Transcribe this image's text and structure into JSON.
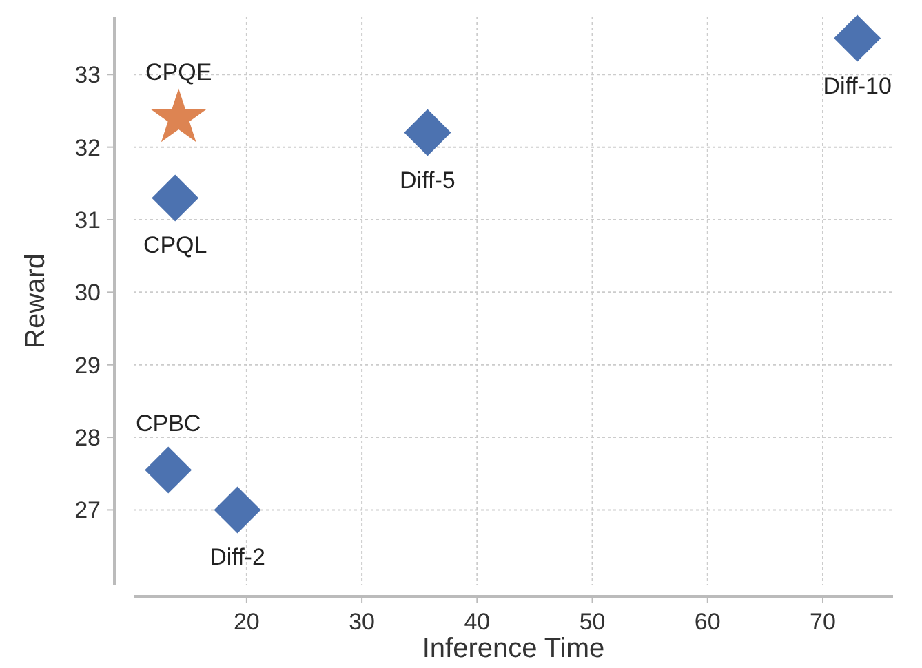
{
  "chart_data": {
    "type": "scatter",
    "xlabel": "Inference Time",
    "ylabel": "Reward",
    "xlim": [
      10.2,
      76.1
    ],
    "ylim": [
      25.96,
      33.8
    ],
    "xticks": [
      20,
      30,
      40,
      50,
      60,
      70
    ],
    "yticks": [
      27,
      28,
      29,
      30,
      31,
      32,
      33
    ],
    "grid": true,
    "series": [
      {
        "color": "#4c72b0",
        "marker": "diamond",
        "x": [
          13.8,
          35.7,
          73.0,
          13.2,
          19.2
        ],
        "values": [
          31.3,
          32.2,
          33.5,
          27.55,
          27.0
        ]
      },
      {
        "color": "#dd8452",
        "marker": "star",
        "x": [
          14.1
        ],
        "values": [
          32.4
        ]
      }
    ],
    "annotations": [
      {
        "text": "CPQE",
        "x": 14.1,
        "y": 32.4
      },
      {
        "text": "CPQL",
        "x": 13.8,
        "y": 31.3
      },
      {
        "text": "Diff-5",
        "x": 35.7,
        "y": 32.2
      },
      {
        "text": "Diff-10",
        "x": 73.0,
        "y": 33.5
      },
      {
        "text": "CPBC",
        "x": 13.2,
        "y": 27.55
      },
      {
        "text": "Diff-2",
        "x": 19.2,
        "y": 27.0
      }
    ]
  }
}
